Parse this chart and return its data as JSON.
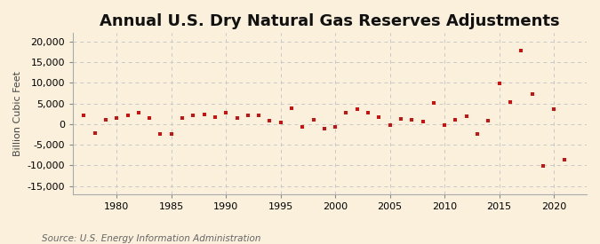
{
  "title": "Annual U.S. Dry Natural Gas Reserves Adjustments",
  "ylabel": "Billion Cubic Feet",
  "source": "Source: U.S. Energy Information Administration",
  "background_color": "#faf0dc",
  "marker_color": "#cc1111",
  "years": [
    1977,
    1978,
    1979,
    1980,
    1981,
    1982,
    1983,
    1984,
    1985,
    1986,
    1987,
    1988,
    1989,
    1990,
    1991,
    1992,
    1993,
    1994,
    1995,
    1996,
    1997,
    1998,
    1999,
    2000,
    2001,
    2002,
    2003,
    2004,
    2005,
    2006,
    2007,
    2008,
    2009,
    2010,
    2011,
    2012,
    2013,
    2014,
    2015,
    2016,
    2017,
    2018,
    2019,
    2020,
    2021
  ],
  "values": [
    2200,
    -2200,
    1100,
    1500,
    2000,
    2700,
    1400,
    -2300,
    -2300,
    1500,
    2000,
    2400,
    1700,
    2700,
    1500,
    2200,
    2200,
    800,
    400,
    3900,
    -700,
    1000,
    -1200,
    -700,
    2700,
    3500,
    2700,
    1700,
    -200,
    1300,
    1000,
    600,
    5100,
    -300,
    1100,
    1800,
    -2500,
    800,
    9900,
    5400,
    17700,
    7200,
    -10100,
    3500,
    -8700
  ],
  "ylim": [
    -17000,
    22000
  ],
  "yticks": [
    -15000,
    -10000,
    -5000,
    0,
    5000,
    10000,
    15000,
    20000
  ],
  "xlim": [
    1976,
    2023
  ],
  "xticks": [
    1980,
    1985,
    1990,
    1995,
    2000,
    2005,
    2010,
    2015,
    2020
  ],
  "grid_color": "#c8c8c8",
  "title_fontsize": 13,
  "label_fontsize": 8,
  "tick_fontsize": 8,
  "source_fontsize": 7.5
}
